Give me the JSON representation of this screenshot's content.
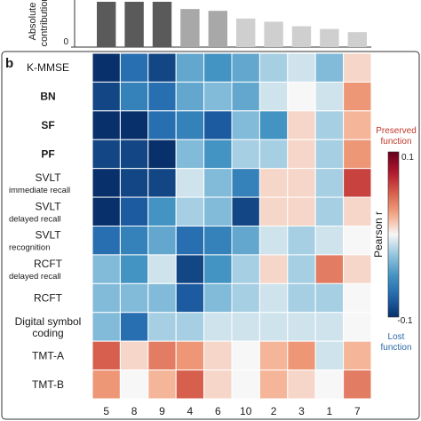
{
  "chart_data": [
    {
      "type": "bar",
      "panel": "a",
      "ylabel_lines": [
        "Absolute",
        "contribution"
      ],
      "ytick_labels": [
        "0"
      ],
      "categories": [
        "5",
        "8",
        "9",
        "4",
        "6",
        "10",
        "2",
        "3",
        "1",
        "7"
      ],
      "values": [
        1.0,
        1.0,
        1.0,
        0.84,
        0.8,
        0.63,
        0.56,
        0.46,
        0.4,
        0.33
      ],
      "bar_colors": [
        "#5a5a5a",
        "#5a5a5a",
        "#5a5a5a",
        "#a8a8a8",
        "#a8a8a8",
        "#cfcfcf",
        "#cfcfcf",
        "#cfcfcf",
        "#cfcfcf",
        "#cfcfcf"
      ]
    },
    {
      "type": "heatmap",
      "panel": "b",
      "panel_label": "b",
      "x_tick_labels": [
        "5",
        "8",
        "9",
        "4",
        "6",
        "10",
        "2",
        "3",
        "1",
        "7"
      ],
      "rows": [
        {
          "lines": [
            "K-MMSE"
          ],
          "bold": false
        },
        {
          "lines": [
            "BN"
          ],
          "bold": true
        },
        {
          "lines": [
            "SF"
          ],
          "bold": true
        },
        {
          "lines": [
            "PF"
          ],
          "bold": true
        },
        {
          "lines": [
            "SVLT",
            "immediate recall"
          ],
          "bold": false
        },
        {
          "lines": [
            "SVLT",
            "delayed recall"
          ],
          "bold": false
        },
        {
          "lines": [
            "SVLT",
            "recognition"
          ],
          "bold": false
        },
        {
          "lines": [
            "RCFT",
            "delayed recall"
          ],
          "bold": false
        },
        {
          "lines": [
            "RCFT"
          ],
          "bold": false
        },
        {
          "lines": [
            "Digital symbol",
            "coding"
          ],
          "bold": false
        },
        {
          "lines": [
            "TMT-A"
          ],
          "bold": false
        },
        {
          "lines": [
            "TMT-B"
          ],
          "bold": false
        }
      ],
      "values": [
        [
          -0.1,
          -0.07,
          -0.09,
          -0.04,
          -0.05,
          -0.04,
          -0.02,
          -0.01,
          -0.03,
          0.01
        ],
        [
          -0.09,
          -0.06,
          -0.07,
          -0.04,
          -0.03,
          -0.04,
          -0.01,
          0.0,
          -0.01,
          0.03
        ],
        [
          -0.1,
          -0.1,
          -0.07,
          -0.06,
          -0.08,
          -0.03,
          -0.05,
          0.01,
          -0.02,
          0.02
        ],
        [
          -0.09,
          -0.09,
          -0.1,
          -0.03,
          -0.05,
          -0.02,
          -0.02,
          0.01,
          -0.02,
          0.03
        ],
        [
          -0.1,
          -0.09,
          -0.09,
          -0.01,
          -0.03,
          -0.06,
          0.01,
          0.01,
          -0.02,
          0.06
        ],
        [
          -0.1,
          -0.08,
          -0.05,
          -0.02,
          -0.03,
          -0.09,
          0.01,
          0.01,
          -0.02,
          0.01
        ],
        [
          -0.07,
          -0.06,
          -0.04,
          -0.07,
          -0.06,
          -0.04,
          -0.01,
          -0.02,
          -0.01,
          0.0
        ],
        [
          -0.03,
          -0.05,
          -0.01,
          -0.09,
          -0.05,
          -0.02,
          0.01,
          -0.02,
          0.04,
          0.01
        ],
        [
          -0.03,
          -0.03,
          -0.03,
          -0.08,
          -0.03,
          -0.02,
          -0.01,
          -0.02,
          -0.02,
          0.0
        ],
        [
          -0.03,
          -0.07,
          -0.02,
          -0.02,
          -0.01,
          -0.01,
          -0.01,
          -0.01,
          -0.01,
          0.0
        ],
        [
          0.05,
          0.01,
          0.04,
          0.03,
          0.01,
          0.0,
          0.02,
          0.03,
          -0.01,
          0.02
        ],
        [
          0.03,
          0.0,
          0.02,
          0.05,
          0.01,
          0.0,
          0.02,
          0.01,
          0.0,
          0.04
        ]
      ],
      "colorbar": {
        "label": "Pearson r",
        "range": [
          -0.1,
          0.1
        ],
        "tick_labels": [
          "0.1",
          "-0.1"
        ],
        "top_label_lines": [
          "Preserved",
          "function"
        ],
        "bottom_label_lines": [
          "Lost",
          "function"
        ],
        "top_color": "#c0392b",
        "bottom_color": "#2c6aa8"
      }
    }
  ]
}
